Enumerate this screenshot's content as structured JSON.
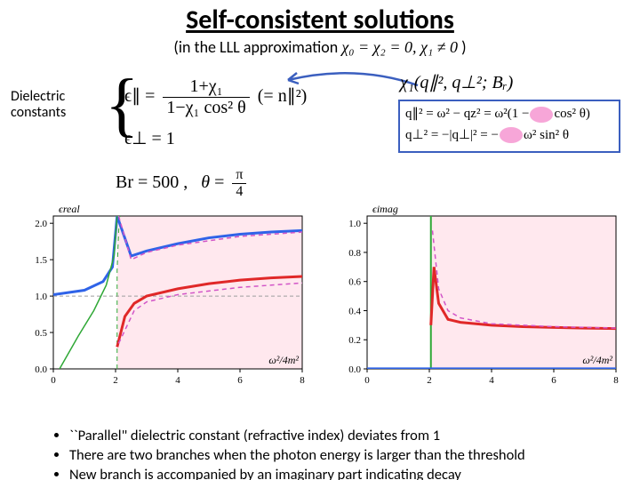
{
  "title": "Self-consistent solutions",
  "subtitle_prefix": "(in the LLL approximation",
  "subtitle_math": "χ₀ = χ₂ = 0, χ₁ ≠ 0",
  "subtitle_suffix": ")",
  "side_label_1": "Dielectric",
  "side_label_2": "constants",
  "eps_par_lhs": "ϵ∥ =",
  "eps_par_num": "1+χ₁",
  "eps_par_den": "1−χ₁ cos² θ",
  "eps_par_rhs": "(= n∥²)",
  "eps_perp": "ϵ⊥ = 1",
  "chi1_expr": "χ₁(q∥², q⊥²; Bᵣ)",
  "qbox_line1_a": "q∥² = ω² − qz² = ω²(1 −",
  "qbox_line1_b": "cos² θ)",
  "qbox_line2_a": "q⊥² = −|q⊥|² =  −",
  "qbox_line2_b": "ω² sin² θ",
  "params_text": "Br = 500 ,  θ = π/4",
  "bullet1": "``Parallel\" dielectric constant (refractive index) deviates from 1",
  "bullet2": "There are two branches when the photon energy is larger than the threshold",
  "bullet3": "New branch is accompanied by an imaginary part indicating decay",
  "chart_left": {
    "type": "line",
    "ylabel": "ϵreal",
    "xlabel": "ω²/4m²",
    "xlim": [
      0,
      8
    ],
    "xticks": [
      0,
      2,
      4,
      6,
      8
    ],
    "ylim": [
      0,
      2.1
    ],
    "yticks": [
      0.0,
      0.5,
      1.0,
      1.5,
      2.0
    ],
    "bg": "#ffffff",
    "shade_bg": "#ffe8ee",
    "shade_x0": 2.05,
    "lines": [
      {
        "name": "vgreen",
        "color": "#2fa836",
        "width": 1,
        "dash": "5,4",
        "pts": [
          [
            2.05,
            0
          ],
          [
            2.05,
            1.35
          ],
          [
            2.1,
            1.9
          ],
          [
            2.15,
            2.1
          ]
        ]
      },
      {
        "name": "gray-1",
        "color": "#9e9e9e",
        "width": 1,
        "dash": "4,3",
        "pts": [
          [
            0,
            1
          ],
          [
            8,
            1
          ]
        ]
      },
      {
        "name": "blue",
        "color": "#2f63e8",
        "width": 3,
        "dash": "",
        "pts": [
          [
            0,
            1.02
          ],
          [
            1,
            1.08
          ],
          [
            1.6,
            1.2
          ],
          [
            1.9,
            1.4
          ],
          [
            2.05,
            2.1
          ],
          [
            2.5,
            1.55
          ],
          [
            3,
            1.62
          ],
          [
            4,
            1.72
          ],
          [
            5,
            1.8
          ],
          [
            6,
            1.85
          ],
          [
            7,
            1.88
          ],
          [
            8,
            1.9
          ]
        ]
      },
      {
        "name": "red",
        "color": "#e02828",
        "width": 3,
        "dash": "",
        "pts": [
          [
            2.05,
            0.3
          ],
          [
            2.3,
            0.72
          ],
          [
            2.6,
            0.9
          ],
          [
            3,
            1.0
          ],
          [
            4,
            1.1
          ],
          [
            5,
            1.17
          ],
          [
            6,
            1.22
          ],
          [
            7,
            1.25
          ],
          [
            8,
            1.27
          ]
        ]
      },
      {
        "name": "magenta-top",
        "color": "#d255c7",
        "width": 1.5,
        "dash": "5,4",
        "pts": [
          [
            2.1,
            2.1
          ],
          [
            2.5,
            1.5
          ],
          [
            3,
            1.6
          ],
          [
            4,
            1.7
          ],
          [
            6,
            1.82
          ],
          [
            8,
            1.88
          ]
        ]
      },
      {
        "name": "magenta-bot",
        "color": "#d255c7",
        "width": 1.5,
        "dash": "5,4",
        "pts": [
          [
            2.1,
            0.35
          ],
          [
            2.6,
            0.8
          ],
          [
            3,
            0.92
          ],
          [
            4,
            1.02
          ],
          [
            6,
            1.12
          ],
          [
            8,
            1.18
          ]
        ]
      },
      {
        "name": "green-curve",
        "color": "#2fa836",
        "width": 1.5,
        "dash": "",
        "pts": [
          [
            0.2,
            0
          ],
          [
            0.8,
            0.45
          ],
          [
            1.3,
            0.8
          ],
          [
            1.7,
            1.15
          ],
          [
            1.95,
            1.55
          ],
          [
            2.05,
            2.1
          ]
        ]
      }
    ]
  },
  "chart_right": {
    "type": "line",
    "ylabel": "ϵimag",
    "xlabel": "ω²/4m²",
    "xlim": [
      0,
      8
    ],
    "xticks": [
      0,
      2,
      4,
      6,
      8
    ],
    "ylim": [
      0,
      1.05
    ],
    "yticks": [
      0.0,
      0.2,
      0.4,
      0.6,
      0.8,
      1.0
    ],
    "bg": "#ffffff",
    "shade_bg": "#ffe8ee",
    "shade_x0": 2.05,
    "lines": [
      {
        "name": "vgreen",
        "color": "#2fa836",
        "width": 2,
        "dash": "",
        "pts": [
          [
            2.05,
            0
          ],
          [
            2.05,
            1.05
          ]
        ]
      },
      {
        "name": "blue",
        "color": "#2f63e8",
        "width": 3,
        "dash": "",
        "pts": [
          [
            0,
            0.001
          ],
          [
            8,
            0.001
          ]
        ]
      },
      {
        "name": "red",
        "color": "#e02828",
        "width": 3,
        "dash": "",
        "pts": [
          [
            2.05,
            0.3
          ],
          [
            2.15,
            0.7
          ],
          [
            2.3,
            0.45
          ],
          [
            2.6,
            0.34
          ],
          [
            3,
            0.32
          ],
          [
            4,
            0.3
          ],
          [
            5,
            0.29
          ],
          [
            6,
            0.285
          ],
          [
            7,
            0.28
          ],
          [
            8,
            0.277
          ]
        ]
      },
      {
        "name": "magenta",
        "color": "#d255c7",
        "width": 1.5,
        "dash": "5,4",
        "pts": [
          [
            2.1,
            0.95
          ],
          [
            2.3,
            0.55
          ],
          [
            2.6,
            0.4
          ],
          [
            3,
            0.35
          ],
          [
            4,
            0.31
          ],
          [
            6,
            0.29
          ],
          [
            8,
            0.28
          ]
        ]
      }
    ]
  }
}
